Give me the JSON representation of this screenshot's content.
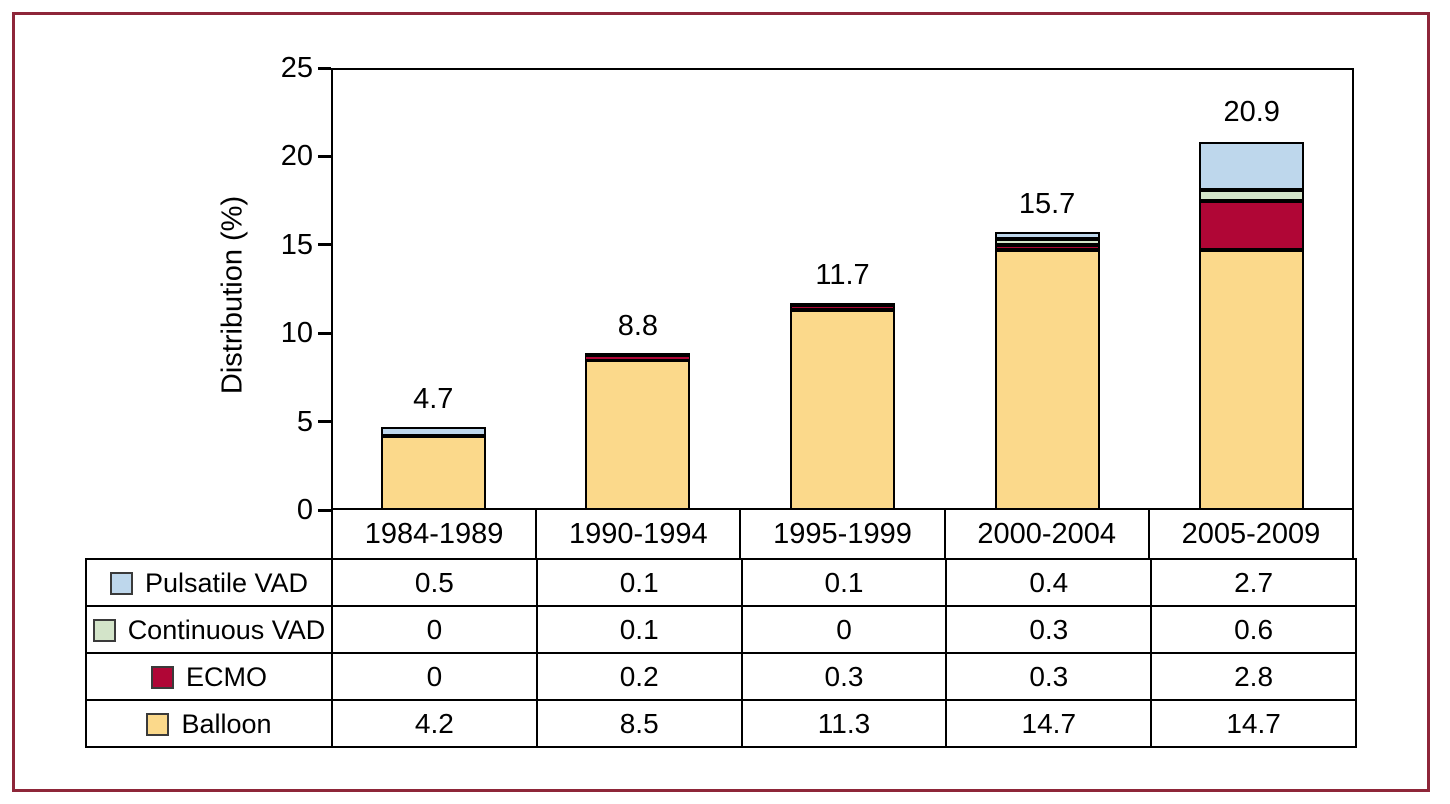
{
  "figure": {
    "background": "#ffffff",
    "border_color": "#8e2639"
  },
  "chart_data": {
    "type": "bar",
    "stacked": true,
    "title": "",
    "xlabel": "",
    "ylabel": "Distribution (%)",
    "ylim": [
      0,
      25
    ],
    "yticks": [
      "0",
      "5",
      "10",
      "15",
      "20",
      "25"
    ],
    "grid": false,
    "legend_position": "table-rows-left",
    "categories": [
      "1984-1989",
      "1990-1994",
      "1995-1999",
      "2000-2004",
      "2005-2009"
    ],
    "series": [
      {
        "name": "Pulsatile VAD",
        "color": "#bed7ec",
        "values": [
          0.5,
          0.1,
          0.1,
          0.4,
          2.7
        ]
      },
      {
        "name": "Continuous VAD",
        "color": "#d3e4c9",
        "values": [
          0,
          0.1,
          0,
          0.3,
          0.6
        ]
      },
      {
        "name": "ECMO",
        "color": "#b00636",
        "values": [
          0,
          0.2,
          0.3,
          0.3,
          2.8
        ]
      },
      {
        "name": "Balloon",
        "color": "#fbd98b",
        "values": [
          4.2,
          8.5,
          11.3,
          14.7,
          14.7
        ]
      }
    ],
    "stack_order_bottom_to_top": [
      "Balloon",
      "ECMO",
      "Continuous VAD",
      "Pulsatile VAD"
    ],
    "bar_total_labels": [
      "4.7",
      "8.8",
      "11.7",
      "15.7",
      "20.9"
    ],
    "segment_outline_color": "#000000",
    "axis_color": "#000000"
  }
}
